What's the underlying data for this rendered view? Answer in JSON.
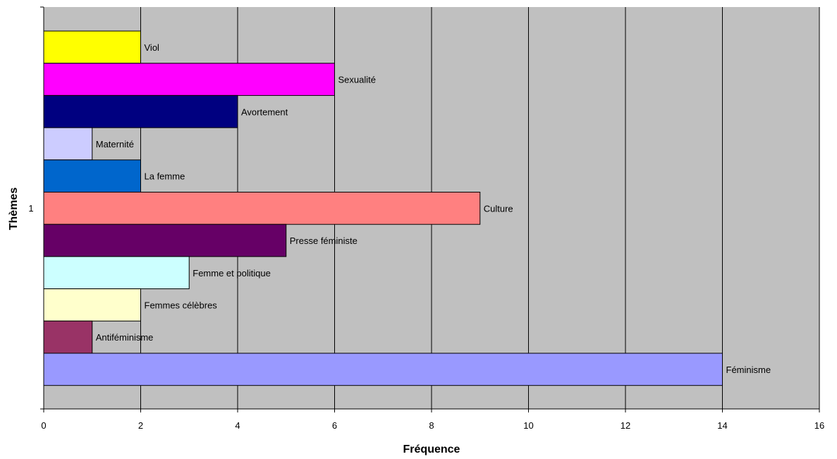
{
  "chart_data": {
    "type": "bar",
    "orientation": "horizontal",
    "title": "",
    "xlabel": "Fréquence",
    "ylabel": "Thèmes",
    "category_tick": "1",
    "xlim": [
      0,
      16
    ],
    "x_ticks": [
      0,
      2,
      4,
      6,
      8,
      10,
      12,
      14,
      16
    ],
    "grid": true,
    "legend": "none",
    "plot_background": "#c0c0c0",
    "series": [
      {
        "name": "Viol",
        "value": 2,
        "color": "#ffff00"
      },
      {
        "name": "Sexualité",
        "value": 6,
        "color": "#ff00ff"
      },
      {
        "name": "Avortement",
        "value": 4,
        "color": "#000080"
      },
      {
        "name": "Maternité",
        "value": 1,
        "color": "#ccccff"
      },
      {
        "name": "La femme",
        "value": 2,
        "color": "#0066cc"
      },
      {
        "name": "Culture",
        "value": 9,
        "color": "#ff8080"
      },
      {
        "name": "Presse féministe",
        "value": 5,
        "color": "#660066"
      },
      {
        "name": "Femme et politique",
        "value": 3,
        "color": "#ccffff"
      },
      {
        "name": "Femmes célèbres",
        "value": 2,
        "color": "#ffffcc"
      },
      {
        "name": "Antiféminisme",
        "value": 1,
        "color": "#993366"
      },
      {
        "name": "Féminisme",
        "value": 14,
        "color": "#9999ff"
      }
    ]
  }
}
